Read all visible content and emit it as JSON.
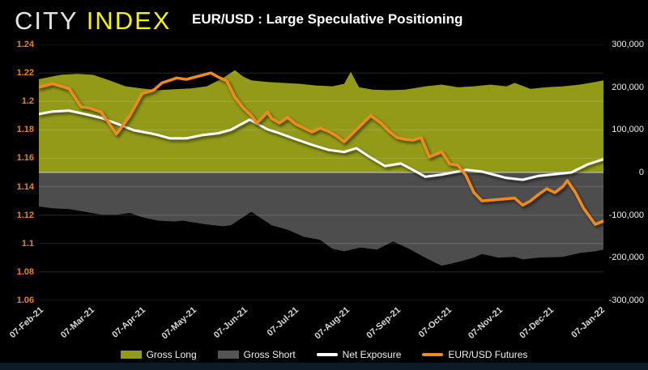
{
  "header": {
    "logo_part1": "CITY",
    "logo_part2": "INDEX",
    "title": "EUR/USD : Large Speculative Positioning"
  },
  "colors": {
    "background": "#000000",
    "logo_city": "#e3e3e3",
    "logo_index": "#f6f303",
    "gross_long_fill": "#929a18",
    "gross_short_fill": "#4d4d4d",
    "net_exposure_line": "#ffffff",
    "futures_line": "#f08a1e",
    "left_axis_labels": "#e8831f",
    "right_axis_labels": "#efefef",
    "x_axis_labels": "#d8d8d8",
    "gridline": "rgba(255,255,255,0.16)",
    "zero_line": "#bdbdbd",
    "bottom_bar": "#0d1b28"
  },
  "chart_data": {
    "type": "combo (stacked area + line)",
    "title": "EUR/USD : Large Speculative Positioning",
    "x_unit": "months since 07-Feb-21 (weekly CFTC data)",
    "grid": "horizontal only",
    "legend_position": "bottom center",
    "x_ticks": [
      "07-Feb-21",
      "07-Mar-21",
      "07-Apr-21",
      "07-May-21",
      "07-Jun-21",
      "07-Jul-21",
      "07-Aug-21",
      "07-Sep-21",
      "07-Oct-21",
      "07-Nov-21",
      "07-Dec-21",
      "07-Jan-22"
    ],
    "x_tick_positions": [
      0,
      1,
      2,
      3,
      4,
      5,
      6,
      7,
      8,
      9,
      10,
      11
    ],
    "x_max": 11.06,
    "left_axis": {
      "min": 1.06,
      "max": 1.24,
      "ticks": [
        "1.24",
        "1.22",
        "1.2",
        "1.18",
        "1.16",
        "1.14",
        "1.12",
        "1.1",
        "1.08",
        "1.06"
      ],
      "tick_values": [
        1.24,
        1.22,
        1.2,
        1.18,
        1.16,
        1.14,
        1.12,
        1.1,
        1.08,
        1.06
      ]
    },
    "right_axis": {
      "min": -300000,
      "max": 300000,
      "ticks": [
        "300,000",
        "200,000",
        "100,000",
        "0",
        "-100,000",
        "-200,000",
        "-300,000"
      ],
      "tick_values": [
        300000,
        200000,
        100000,
        0,
        -100000,
        -200000,
        -300000
      ]
    },
    "series": [
      {
        "name": "Gross Long",
        "type": "area",
        "axis": "right",
        "color": "#929a18",
        "points": [
          [
            0,
            219000
          ],
          [
            0.43,
            229000
          ],
          [
            0.75,
            231000
          ],
          [
            1.06,
            229000
          ],
          [
            1.38,
            216000
          ],
          [
            1.7,
            202000
          ],
          [
            2.02,
            197000
          ],
          [
            2.33,
            193000
          ],
          [
            2.65,
            195000
          ],
          [
            2.97,
            197000
          ],
          [
            3.29,
            202000
          ],
          [
            3.6,
            221000
          ],
          [
            3.84,
            240000
          ],
          [
            4.0,
            225000
          ],
          [
            4.16,
            216000
          ],
          [
            4.48,
            212000
          ],
          [
            4.79,
            210000
          ],
          [
            5.11,
            208000
          ],
          [
            5.43,
            204000
          ],
          [
            5.75,
            202000
          ],
          [
            5.98,
            208000
          ],
          [
            6.11,
            236000
          ],
          [
            6.27,
            200000
          ],
          [
            6.54,
            194000
          ],
          [
            6.86,
            193000
          ],
          [
            7.17,
            194000
          ],
          [
            7.57,
            202000
          ],
          [
            7.89,
            206000
          ],
          [
            8.21,
            200000
          ],
          [
            8.52,
            202000
          ],
          [
            8.84,
            206000
          ],
          [
            9.16,
            202000
          ],
          [
            9.32,
            210000
          ],
          [
            9.63,
            196000
          ],
          [
            9.95,
            200000
          ],
          [
            10.27,
            202000
          ],
          [
            10.59,
            206000
          ],
          [
            10.9,
            212000
          ],
          [
            11.06,
            216000
          ]
        ]
      },
      {
        "name": "Gross Short",
        "type": "area",
        "axis": "right",
        "color": "#4d4d4d",
        "points": [
          [
            0,
            -80000
          ],
          [
            0.27,
            -84000
          ],
          [
            0.59,
            -86000
          ],
          [
            0.9,
            -92000
          ],
          [
            1.22,
            -99000
          ],
          [
            1.54,
            -99000
          ],
          [
            1.78,
            -95000
          ],
          [
            2.02,
            -105000
          ],
          [
            2.33,
            -113000
          ],
          [
            2.65,
            -115000
          ],
          [
            2.81,
            -113000
          ],
          [
            2.97,
            -116000
          ],
          [
            3.29,
            -122000
          ],
          [
            3.6,
            -126000
          ],
          [
            3.76,
            -124000
          ],
          [
            4.16,
            -92000
          ],
          [
            4.56,
            -124000
          ],
          [
            4.87,
            -134000
          ],
          [
            5.19,
            -151000
          ],
          [
            5.51,
            -158000
          ],
          [
            5.75,
            -179000
          ],
          [
            5.98,
            -185000
          ],
          [
            6.3,
            -176000
          ],
          [
            6.62,
            -181000
          ],
          [
            6.94,
            -162000
          ],
          [
            7.25,
            -179000
          ],
          [
            7.57,
            -200000
          ],
          [
            7.89,
            -219000
          ],
          [
            8.21,
            -210000
          ],
          [
            8.52,
            -200000
          ],
          [
            8.68,
            -191000
          ],
          [
            9.0,
            -200000
          ],
          [
            9.32,
            -198000
          ],
          [
            9.48,
            -204000
          ],
          [
            9.79,
            -200000
          ],
          [
            10.27,
            -198000
          ],
          [
            10.59,
            -189000
          ],
          [
            10.9,
            -185000
          ],
          [
            11.06,
            -181000
          ]
        ]
      },
      {
        "name": "Net Exposure",
        "type": "line",
        "axis": "right",
        "color": "#ffffff",
        "width": 3,
        "points": [
          [
            0,
            137000
          ],
          [
            0.27,
            143000
          ],
          [
            0.59,
            145000
          ],
          [
            0.9,
            137000
          ],
          [
            1.22,
            128000
          ],
          [
            1.54,
            114000
          ],
          [
            1.86,
            99000
          ],
          [
            2.17,
            92000
          ],
          [
            2.33,
            88000
          ],
          [
            2.57,
            80000
          ],
          [
            2.89,
            80000
          ],
          [
            3.21,
            88000
          ],
          [
            3.52,
            92000
          ],
          [
            3.76,
            100000
          ],
          [
            4.13,
            124000
          ],
          [
            4.48,
            101000
          ],
          [
            4.71,
            92000
          ],
          [
            5.03,
            78000
          ],
          [
            5.35,
            65000
          ],
          [
            5.67,
            53000
          ],
          [
            5.98,
            48000
          ],
          [
            6.22,
            57000
          ],
          [
            6.46,
            38000
          ],
          [
            6.78,
            15000
          ],
          [
            7.09,
            21000
          ],
          [
            7.25,
            11000
          ],
          [
            7.57,
            -10000
          ],
          [
            7.89,
            -5000
          ],
          [
            8.37,
            6000
          ],
          [
            8.68,
            2000
          ],
          [
            9.16,
            -13000
          ],
          [
            9.48,
            -17000
          ],
          [
            9.79,
            -8000
          ],
          [
            10.11,
            -4000
          ],
          [
            10.43,
            0
          ],
          [
            10.75,
            19000
          ],
          [
            11.06,
            31000
          ]
        ]
      },
      {
        "name": "EUR/USD Futures",
        "type": "line",
        "axis": "left",
        "color": "#f08a1e",
        "width": 3.5,
        "points": [
          [
            0,
            1.21
          ],
          [
            0.27,
            1.2125
          ],
          [
            0.59,
            1.209
          ],
          [
            0.83,
            1.196
          ],
          [
            0.98,
            1.1955
          ],
          [
            1.22,
            1.1925
          ],
          [
            1.52,
            1.177
          ],
          [
            1.78,
            1.19
          ],
          [
            2.02,
            1.2055
          ],
          [
            2.25,
            1.208
          ],
          [
            2.41,
            1.213
          ],
          [
            2.7,
            1.2165
          ],
          [
            2.89,
            1.2155
          ],
          [
            3.21,
            1.2185
          ],
          [
            3.37,
            1.22
          ],
          [
            3.52,
            1.217
          ],
          [
            3.68,
            1.2145
          ],
          [
            3.84,
            1.203
          ],
          [
            4.0,
            1.1955
          ],
          [
            4.16,
            1.19
          ],
          [
            4.27,
            1.1848
          ],
          [
            4.48,
            1.1925
          ],
          [
            4.56,
            1.188
          ],
          [
            4.71,
            1.1848
          ],
          [
            4.87,
            1.1888
          ],
          [
            5.03,
            1.184
          ],
          [
            5.19,
            1.1813
          ],
          [
            5.35,
            1.1784
          ],
          [
            5.51,
            1.1813
          ],
          [
            5.67,
            1.179
          ],
          [
            5.83,
            1.1757
          ],
          [
            5.98,
            1.1716
          ],
          [
            6.14,
            1.1773
          ],
          [
            6.3,
            1.183
          ],
          [
            6.5,
            1.19
          ],
          [
            6.7,
            1.1848
          ],
          [
            6.86,
            1.179
          ],
          [
            7.02,
            1.1745
          ],
          [
            7.17,
            1.1733
          ],
          [
            7.33,
            1.1728
          ],
          [
            7.49,
            1.1745
          ],
          [
            7.65,
            1.161
          ],
          [
            7.89,
            1.1645
          ],
          [
            8.05,
            1.156
          ],
          [
            8.21,
            1.155
          ],
          [
            8.37,
            1.1477
          ],
          [
            8.52,
            1.136
          ],
          [
            8.68,
            1.13
          ],
          [
            8.84,
            1.1305
          ],
          [
            9.0,
            1.131
          ],
          [
            9.16,
            1.1315
          ],
          [
            9.32,
            1.132
          ],
          [
            9.48,
            1.127
          ],
          [
            9.63,
            1.13
          ],
          [
            9.79,
            1.1346
          ],
          [
            9.95,
            1.1386
          ],
          [
            10.11,
            1.1358
          ],
          [
            10.27,
            1.1403
          ],
          [
            10.35,
            1.1443
          ],
          [
            10.51,
            1.136
          ],
          [
            10.67,
            1.1249
          ],
          [
            10.9,
            1.1135
          ],
          [
            11.06,
            1.1158
          ]
        ]
      }
    ]
  },
  "legend": {
    "items": [
      {
        "label": "Gross Long",
        "swatch": "area",
        "color": "#929a18"
      },
      {
        "label": "Gross Short",
        "swatch": "area",
        "color": "#555555"
      },
      {
        "label": "Net Exposure",
        "swatch": "line",
        "color": "#ffffff"
      },
      {
        "label": "EUR/USD Futures",
        "swatch": "line",
        "color": "#f08a1e"
      }
    ]
  }
}
